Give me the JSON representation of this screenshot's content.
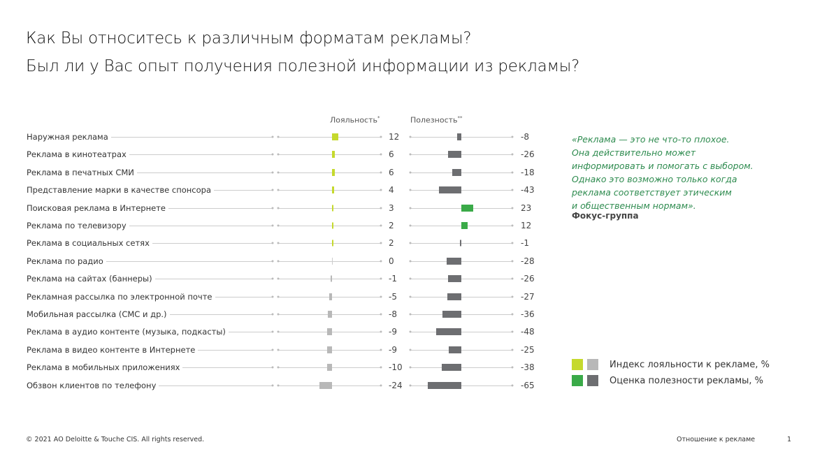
{
  "title_line1": "Как Вы относитесь к различным форматам рекламы?",
  "title_line2": "Был ли у Вас опыт получения полезной информации из рекламы?",
  "chart_data": {
    "type": "bar",
    "series_headers": {
      "loyalty": "Лояльность",
      "loyalty_mark": "*",
      "usefulness": "Полезность",
      "usefulness_mark": "**"
    },
    "categories": [
      "Наружная реклама",
      "Реклама в кинотеатрах",
      "Реклама в печатных СМИ",
      "Представление марки в качестве спонсора",
      "Поисковая реклама в Интернете",
      "Реклама по телевизору",
      "Реклама в социальных сетях",
      "Реклама по радио",
      "Реклама на сайтах (баннеры)",
      "Рекламная рассылка по электронной почте",
      "Мобильная рассылка (СМС и др.)",
      "Реклама в аудио контенте (музыка, подкасты)",
      "Реклама в видео контенте в Интернете",
      "Реклама в мобильных приложениях",
      "Обзвон клиентов по телефону"
    ],
    "series": [
      {
        "name": "Индекс лояльности к рекламе, %",
        "values": [
          12,
          6,
          6,
          4,
          3,
          2,
          2,
          0,
          -1,
          -5,
          -8,
          -9,
          -9,
          -10,
          -24
        ],
        "color_pos": "#c5d92d",
        "color_neg": "#b8b8b8"
      },
      {
        "name": "Оценка полезности рекламы, %",
        "values": [
          -8,
          -26,
          -18,
          -43,
          23,
          12,
          -1,
          -28,
          -26,
          -27,
          -36,
          -48,
          -25,
          -38,
          -65
        ],
        "color_pos": "#3aaa48",
        "color_neg": "#6d6e71"
      }
    ]
  },
  "quote": "«Реклама — это не что-то плохое.\nОна действительно может\nинформировать и помогать с выбором.\nОднако это возможно только когда\nреклама соответствует этическим\nи общественным нормам».",
  "quote_source": "Фокус-группа",
  "legend": [
    "Индекс лояльности к рекламе, %",
    "Оценка полезности рекламы, %"
  ],
  "footer": {
    "copyright": "© 2021 АО Deloitte & Touche CIS. All rights reserved.",
    "section": "Отношение к рекламе",
    "page": "1"
  }
}
